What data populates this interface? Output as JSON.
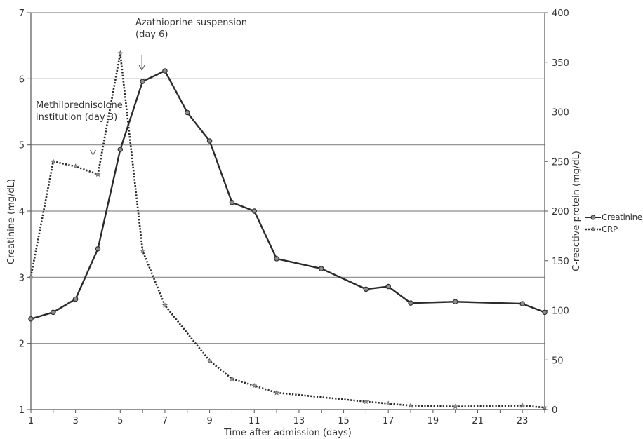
{
  "chart_data": {
    "type": "line",
    "xlabel": "Time after admission (days)",
    "ylabel": "Creatinine (mg/dL)",
    "y2label": "C-reactive protein (mg/dL)",
    "xlim": [
      1,
      24
    ],
    "xticks": [
      1,
      3,
      5,
      7,
      9,
      11,
      13,
      15,
      17,
      19,
      21,
      23
    ],
    "ylim": [
      1,
      7
    ],
    "yticks": [
      1,
      2,
      3,
      4,
      5,
      6,
      7
    ],
    "y2lim": [
      0,
      400
    ],
    "y2ticks": [
      0,
      50,
      100,
      150,
      200,
      250,
      300,
      350,
      400
    ],
    "grid": "horizontal",
    "legend_position": "right",
    "series": [
      {
        "name": "Creatinine",
        "axis": "left",
        "style": "solid-circle",
        "color": "#2b2b2b",
        "x": [
          1,
          2,
          3,
          4,
          5,
          6,
          7,
          8,
          9,
          10,
          11,
          12,
          14,
          16,
          17,
          18,
          20,
          23,
          24
        ],
        "y": [
          2.37,
          2.47,
          2.67,
          3.43,
          4.93,
          5.96,
          6.12,
          5.49,
          5.06,
          4.13,
          4.0,
          3.28,
          3.13,
          2.82,
          2.86,
          2.61,
          2.63,
          2.6,
          2.47
        ]
      },
      {
        "name": "CRP",
        "axis": "right",
        "style": "dotted-star",
        "color": "#2b2b2b",
        "x": [
          1,
          2,
          3,
          4,
          5,
          6,
          7,
          9,
          10,
          11,
          12,
          16,
          17,
          18,
          20,
          23,
          24
        ],
        "y": [
          134,
          250,
          245,
          237,
          359,
          160,
          105,
          49,
          31,
          24,
          17,
          8,
          6,
          4,
          3,
          4,
          2
        ]
      }
    ],
    "annotations": [
      {
        "lines": [
          "Azathioprine suspension",
          "(day 6)"
        ],
        "x": 6,
        "y": 6.12
      },
      {
        "lines": [
          "Methilprednisolone",
          "institution (day 3)"
        ],
        "x": 4,
        "y": 4.63
      }
    ]
  }
}
